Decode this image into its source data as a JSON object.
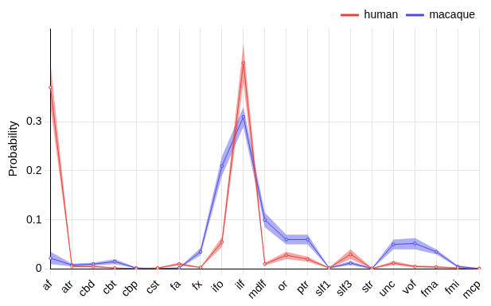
{
  "chart_data": {
    "type": "line",
    "y_label": "Probability",
    "categories": [
      "af",
      "atr",
      "cbd",
      "cbt",
      "cbp",
      "cst",
      "fa",
      "fx",
      "ifo",
      "ilf",
      "mdlf",
      "or",
      "ptr",
      "slf1",
      "slf3",
      "str",
      "unc",
      "vof",
      "fma",
      "fmi",
      "mcp"
    ],
    "series": [
      {
        "name": "human",
        "color": "#e8403a",
        "marker": "circle",
        "values": [
          0.37,
          0.005,
          0.005,
          0.002,
          0.001,
          0.002,
          0.01,
          0.003,
          0.055,
          0.42,
          0.01,
          0.028,
          0.02,
          0.002,
          0.03,
          0.001,
          0.012,
          0.005,
          0.004,
          0.002,
          0.0
        ],
        "lower": [
          0.33,
          0.003,
          0.003,
          0.001,
          0.0,
          0.001,
          0.007,
          0.002,
          0.045,
          0.38,
          0.007,
          0.02,
          0.015,
          0.001,
          0.02,
          0.0,
          0.008,
          0.003,
          0.002,
          0.001,
          0.0
        ],
        "upper": [
          0.42,
          0.007,
          0.007,
          0.003,
          0.002,
          0.003,
          0.013,
          0.004,
          0.065,
          0.46,
          0.013,
          0.035,
          0.025,
          0.003,
          0.04,
          0.002,
          0.016,
          0.007,
          0.006,
          0.003,
          0.001
        ]
      },
      {
        "name": "macaque",
        "color": "#4b4be6",
        "marker": "circle",
        "values": [
          0.022,
          0.008,
          0.01,
          0.015,
          0.002,
          0.001,
          0.002,
          0.035,
          0.21,
          0.31,
          0.1,
          0.06,
          0.06,
          0.002,
          0.012,
          0.001,
          0.05,
          0.052,
          0.035,
          0.005,
          0.001
        ],
        "lower": [
          0.01,
          0.005,
          0.007,
          0.01,
          0.001,
          0.0,
          0.001,
          0.028,
          0.19,
          0.29,
          0.085,
          0.05,
          0.05,
          0.001,
          0.008,
          0.0,
          0.04,
          0.04,
          0.03,
          0.003,
          0.0
        ],
        "upper": [
          0.035,
          0.011,
          0.013,
          0.02,
          0.003,
          0.002,
          0.003,
          0.043,
          0.23,
          0.33,
          0.115,
          0.07,
          0.07,
          0.003,
          0.016,
          0.002,
          0.06,
          0.063,
          0.04,
          0.007,
          0.002
        ]
      }
    ],
    "ylim": [
      0,
      0.49
    ],
    "yticks": [
      0,
      0.1,
      0.2,
      0.3
    ],
    "grid": true,
    "legend": "top-right"
  }
}
